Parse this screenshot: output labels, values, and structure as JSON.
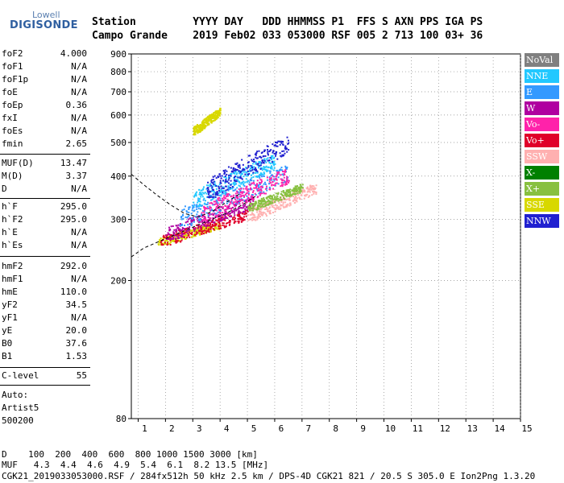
{
  "logo": {
    "line1": "Lowell",
    "line2": "DIGISONDE"
  },
  "header": {
    "labels": "Station         YYYY DAY   DDD HHMMSS P1  FFS S AXN PPS IGA PS",
    "values": "Campo Grande    2019 Feb02 033 053000 RSF 005 2 713 100 03+ 36"
  },
  "params": [
    {
      "name": "foF2",
      "value": "4.000"
    },
    {
      "name": "foF1",
      "value": "N/A"
    },
    {
      "name": "foF1p",
      "value": "N/A"
    },
    {
      "name": "foE",
      "value": "N/A"
    },
    {
      "name": "foEp",
      "value": "0.36"
    },
    {
      "name": "fxI",
      "value": "N/A"
    },
    {
      "name": "foEs",
      "value": "N/A"
    },
    {
      "name": "fmin",
      "value": "2.65"
    },
    {
      "name": "MUF(D)",
      "value": "13.47"
    },
    {
      "name": "M(D)",
      "value": "3.37"
    },
    {
      "name": "D",
      "value": "N/A"
    },
    {
      "name": "h`F",
      "value": "295.0"
    },
    {
      "name": "h`F2",
      "value": "295.0"
    },
    {
      "name": "h`E",
      "value": "N/A"
    },
    {
      "name": "h`Es",
      "value": "N/A"
    },
    {
      "name": "hmF2",
      "value": "292.0"
    },
    {
      "name": "hmF1",
      "value": "N/A"
    },
    {
      "name": "hmE",
      "value": "110.0"
    },
    {
      "name": "yF2",
      "value": "34.5"
    },
    {
      "name": "yF1",
      "value": "N/A"
    },
    {
      "name": "yE",
      "value": "20.0"
    },
    {
      "name": "B0",
      "value": "37.6"
    },
    {
      "name": "B1",
      "value": "1.53"
    },
    {
      "name": "C-level",
      "value": "55"
    }
  ],
  "auto": {
    "label": "Auto:",
    "program": "Artist5",
    "version": "500200"
  },
  "footer": {
    "d_row": "D    100  200  400  600  800 1000 1500 3000 [km]",
    "muf_row": "MUF   4.3  4.4  4.6  4.9  5.4  6.1  8.2 13.5 [MHz]",
    "status": "CGK21_2019033053000.RSF / 284fx512h 50 kHz 2.5 km / DPS-4D CGK21 821 / 20.5 S 305.0 E Ion2Png 1.3.20"
  },
  "legend": [
    {
      "label": "NoVal",
      "color": "#808080"
    },
    {
      "label": "NNE",
      "color": "#22c8ff"
    },
    {
      "label": "E",
      "color": "#3399ff"
    },
    {
      "label": "W",
      "color": "#b000a0"
    },
    {
      "label": "Vo-",
      "color": "#ff22aa"
    },
    {
      "label": "Vo+",
      "color": "#e0002a"
    },
    {
      "label": "SSW",
      "color": "#ffb0b0"
    },
    {
      "label": "X-",
      "color": "#008000"
    },
    {
      "label": "X+",
      "color": "#88c040"
    },
    {
      "label": "SSE",
      "color": "#d8d800"
    },
    {
      "label": "NNW",
      "color": "#2020d0"
    }
  ],
  "chart_data": {
    "type": "scatter",
    "title": "",
    "xlabel": "",
    "ylabel": "",
    "xlim": [
      0.75,
      15
    ],
    "ylim": [
      80,
      900
    ],
    "y_scale": "log",
    "x_ticks": [
      "1",
      "2",
      "3",
      "4",
      "5",
      "6",
      "7",
      "8",
      "9",
      "10",
      "11",
      "12",
      "13",
      "14",
      "15"
    ],
    "y_ticks": [
      {
        "v": 80,
        "label": "80"
      },
      {
        "v": 200,
        "label": "200"
      },
      {
        "v": 300,
        "label": "300"
      },
      {
        "v": 400,
        "label": "400"
      },
      {
        "v": 500,
        "label": "500"
      },
      {
        "v": 600,
        "label": "600"
      },
      {
        "v": 700,
        "label": "700"
      },
      {
        "v": 800,
        "label": "800"
      },
      {
        "v": 900,
        "label": "900"
      }
    ],
    "grid": "dotted",
    "trace_clusters": [
      {
        "series": "SSE",
        "x": [
          1.7,
          4.0
        ],
        "y": [
          255,
          295
        ]
      },
      {
        "series": "Vo+",
        "x": [
          1.8,
          5.0
        ],
        "y": [
          255,
          320
        ]
      },
      {
        "series": "W",
        "x": [
          2.0,
          5.2
        ],
        "y": [
          265,
          350
        ]
      },
      {
        "series": "E",
        "x": [
          2.5,
          6.5
        ],
        "y": [
          290,
          430
        ]
      },
      {
        "series": "NNE",
        "x": [
          3.0,
          6.0
        ],
        "y": [
          330,
          460
        ]
      },
      {
        "series": "Vo-",
        "x": [
          3.3,
          6.5
        ],
        "y": [
          300,
          420
        ]
      },
      {
        "series": "SSW",
        "x": [
          5.0,
          7.5
        ],
        "y": [
          300,
          380
        ]
      },
      {
        "series": "NNW",
        "x": [
          3.5,
          6.5
        ],
        "y": [
          350,
          520
        ]
      },
      {
        "series": "X+",
        "x": [
          5.0,
          7.0
        ],
        "y": [
          320,
          380
        ]
      },
      {
        "series": "SSE",
        "x": [
          3.0,
          4.0
        ],
        "y": [
          530,
          630
        ]
      }
    ],
    "dashed_profiles": [
      {
        "x": [
          0.75,
          1.2,
          1.8,
          2.4,
          3.0,
          3.6,
          4.2,
          4.8,
          5.3
        ],
        "y": [
          234,
          248,
          260,
          272,
          285,
          298,
          312,
          330,
          350
        ]
      },
      {
        "x": [
          0.75,
          1.2,
          1.7,
          2.2,
          2.7,
          3.2,
          3.7,
          4.2,
          4.7
        ],
        "y": [
          405,
          378,
          352,
          330,
          312,
          305,
          316,
          335,
          355
        ]
      }
    ]
  }
}
